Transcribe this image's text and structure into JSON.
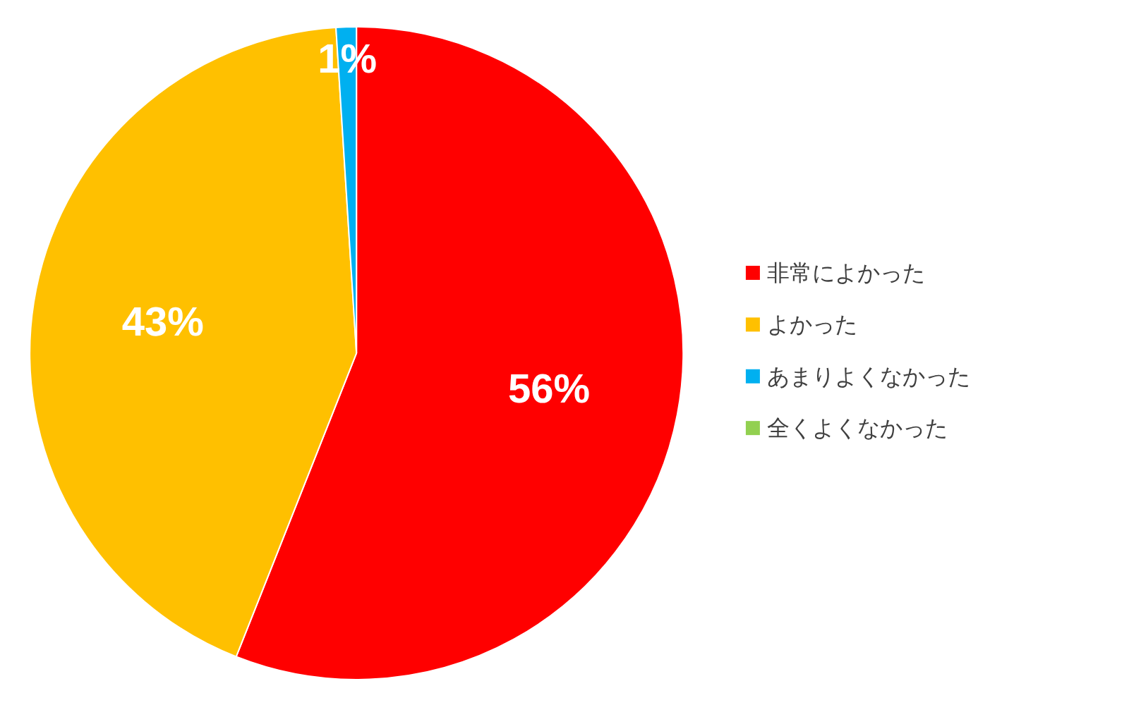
{
  "chart_data": {
    "type": "pie",
    "categories": [
      "非常によかった",
      "よかった",
      "あまりよくなかった",
      "全くよくなかった"
    ],
    "values": [
      56,
      43,
      1,
      0
    ],
    "colors": [
      "#ff0000",
      "#ffc000",
      "#00b0f0",
      "#92d050"
    ],
    "value_labels": [
      "56%",
      "43%",
      "1%",
      null
    ],
    "legend": "right"
  }
}
